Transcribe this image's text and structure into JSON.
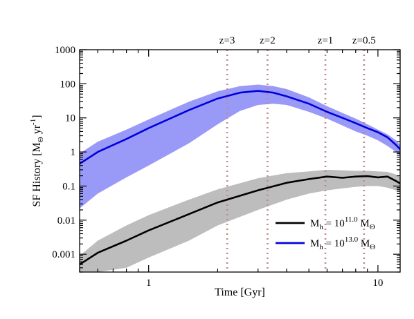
{
  "chart_data": {
    "type": "line",
    "xlabel": "Time [Gyr]",
    "ylabel_parts": {
      "main": "SF History [M",
      "sub": "Θ",
      "mid": " yr",
      "sup": "-1",
      "end": "]"
    },
    "x_scale": "log",
    "y_scale": "log",
    "xlim": [
      0.5,
      12.5
    ],
    "ylim": [
      0.0003,
      1000
    ],
    "x_tick_labels": [
      {
        "value": 1,
        "label": "1"
      },
      {
        "value": 10,
        "label": "10"
      }
    ],
    "y_tick_labels": [
      {
        "value": 0.001,
        "label": "0.001"
      },
      {
        "value": 0.01,
        "label": "0.01"
      },
      {
        "value": 0.1,
        "label": "0.1"
      },
      {
        "value": 1,
        "label": "1"
      },
      {
        "value": 10,
        "label": "10"
      },
      {
        "value": 100,
        "label": "100"
      },
      {
        "value": 1000,
        "label": "1000"
      }
    ],
    "redshift_markers": [
      {
        "label": "z=3",
        "time": 2.2
      },
      {
        "label": "z=2",
        "time": 3.3
      },
      {
        "label": "z=1",
        "time": 5.9
      },
      {
        "label": "z=0.5",
        "time": 8.7
      }
    ],
    "series": [
      {
        "legend_main": "M",
        "legend_sub": "h",
        "legend_eq": " = 10",
        "legend_sup": "11.0",
        "legend_unit": " M",
        "legend_unit_sub": "Θ",
        "color": "#000000",
        "band_color": "#bdbdbd",
        "x": [
          0.5,
          0.6,
          0.8,
          1.0,
          1.5,
          2.0,
          3.0,
          4.0,
          5.0,
          6.0,
          7.0,
          8.0,
          9.0,
          10.0,
          11.0,
          12.0,
          12.5
        ],
        "y": [
          0.0005,
          0.0011,
          0.0025,
          0.005,
          0.015,
          0.033,
          0.075,
          0.125,
          0.16,
          0.19,
          0.175,
          0.19,
          0.195,
          0.18,
          0.19,
          0.14,
          0.12
        ],
        "y_low": [
          0.0003,
          0.0003,
          0.0004,
          0.0008,
          0.0025,
          0.007,
          0.02,
          0.04,
          0.06,
          0.075,
          0.085,
          0.095,
          0.1,
          0.1,
          0.09,
          0.075,
          0.07
        ],
        "y_high": [
          0.0009,
          0.0025,
          0.007,
          0.014,
          0.04,
          0.08,
          0.17,
          0.24,
          0.27,
          0.3,
          0.29,
          0.28,
          0.28,
          0.27,
          0.26,
          0.22,
          0.18
        ]
      },
      {
        "legend_main": "M",
        "legend_sub": "h",
        "legend_eq": " = 10",
        "legend_sup": "13.0",
        "legend_unit": " M",
        "legend_unit_sub": "Θ",
        "color": "#0000dd",
        "band_color": "#9999f7",
        "x": [
          0.5,
          0.6,
          0.8,
          1.0,
          1.5,
          2.0,
          2.5,
          3.0,
          3.5,
          4.0,
          5.0,
          6.0,
          7.0,
          8.0,
          9.0,
          10.0,
          11.0,
          12.0,
          12.5
        ],
        "y": [
          0.45,
          1.0,
          2.4,
          5.0,
          17,
          37,
          55,
          62,
          55,
          43,
          26,
          15,
          10,
          7,
          5,
          3.8,
          2.7,
          1.6,
          1.2
        ],
        "y_low": [
          0.022,
          0.06,
          0.18,
          0.4,
          1.8,
          6.5,
          16,
          24,
          26,
          24,
          15,
          9.5,
          6,
          4,
          3,
          2.2,
          1.5,
          1.0,
          0.8
        ],
        "y_high": [
          0.9,
          2.0,
          4.5,
          9,
          30,
          60,
          85,
          95,
          85,
          70,
          40,
          22,
          14,
          9.5,
          6.5,
          4.5,
          3.3,
          2.2,
          1.6
        ]
      }
    ]
  }
}
